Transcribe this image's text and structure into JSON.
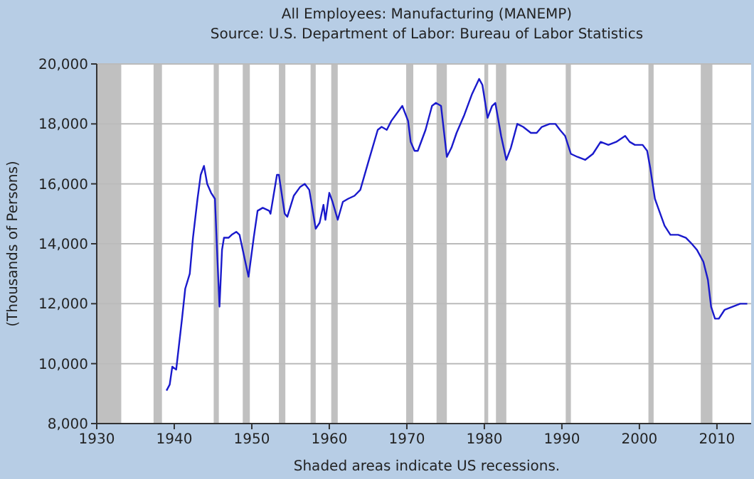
{
  "chart_data": {
    "type": "line",
    "title": "All Employees: Manufacturing (MANEMP)",
    "subtitle": "Source: U.S. Department of Labor: Bureau of Labor Statistics",
    "ylabel": "(Thousands of Persons)",
    "annotations": [
      "Shaded areas indicate US recessions."
    ],
    "x": [
      "1939-01",
      "1939-06",
      "1939-10",
      "1940-04",
      "1941-01",
      "1941-06",
      "1942-01",
      "1942-06",
      "1943-01",
      "1943-06",
      "1943-11",
      "1944-04",
      "1944-10",
      "1945-04",
      "1945-08",
      "1945-11",
      "1946-03",
      "1946-06",
      "1947-01",
      "1947-06",
      "1948-01",
      "1948-06",
      "1949-03",
      "1949-08",
      "1950-04",
      "1950-10",
      "1951-06",
      "1952-04",
      "1952-06",
      "1953-04",
      "1953-07",
      "1954-04",
      "1954-08",
      "1955-06",
      "1956-04",
      "1956-11",
      "1957-06",
      "1958-04",
      "1958-10",
      "1959-04",
      "1959-07",
      "1960-01",
      "1960-06",
      "1961-02",
      "1961-10",
      "1962-06",
      "1963-04",
      "1964-01",
      "1965-01",
      "1966-04",
      "1966-10",
      "1967-06",
      "1968-01",
      "1969-06",
      "1970-03",
      "1970-07",
      "1971-01",
      "1971-06",
      "1972-06",
      "1973-04",
      "1973-10",
      "1974-06",
      "1975-03",
      "1975-10",
      "1976-06",
      "1977-06",
      "1978-06",
      "1979-05",
      "1979-10",
      "1980-06",
      "1981-01",
      "1981-06",
      "1982-03",
      "1982-11",
      "1983-06",
      "1984-04",
      "1985-01",
      "1986-01",
      "1986-10",
      "1987-06",
      "1988-06",
      "1989-03",
      "1989-10",
      "1990-06",
      "1991-03",
      "1992-01",
      "1993-01",
      "1994-01",
      "1995-01",
      "1996-01",
      "1997-01",
      "1998-03",
      "1998-10",
      "1999-06",
      "2000-06",
      "2001-01",
      "2001-06",
      "2002-01",
      "2002-06",
      "2003-04",
      "2004-01",
      "2005-01",
      "2006-01",
      "2006-10",
      "2007-06",
      "2008-04",
      "2008-11",
      "2009-04",
      "2009-10",
      "2010-04",
      "2011-01",
      "2012-01",
      "2013-01",
      "2013-12"
    ],
    "series": [
      {
        "color": "#1a1acc",
        "values": [
          9100,
          9300,
          9900,
          9800,
          11500,
          12500,
          13000,
          14200,
          15500,
          16300,
          16600,
          16000,
          15700,
          15500,
          13400,
          11900,
          13800,
          14200,
          14200,
          14300,
          14400,
          14300,
          13400,
          12900,
          14200,
          15100,
          15200,
          15100,
          15000,
          16300,
          16300,
          15000,
          14900,
          15600,
          15900,
          16000,
          15800,
          14500,
          14700,
          15300,
          14800,
          15700,
          15400,
          14800,
          15400,
          15500,
          15600,
          15800,
          16700,
          17800,
          17900,
          17800,
          18100,
          18600,
          18100,
          17400,
          17100,
          17100,
          17800,
          18600,
          18700,
          18600,
          16900,
          17200,
          17700,
          18300,
          19000,
          19500,
          19300,
          18200,
          18600,
          18700,
          17600,
          16800,
          17200,
          18000,
          17900,
          17700,
          17700,
          17900,
          18000,
          18000,
          17800,
          17600,
          17000,
          16900,
          16800,
          17000,
          17400,
          17300,
          17400,
          17600,
          17400,
          17300,
          17300,
          17100,
          16500,
          15500,
          15200,
          14600,
          14300,
          14300,
          14200,
          14000,
          13800,
          13400,
          12800,
          11900,
          11500,
          11500,
          11800,
          11900,
          12000,
          12000
        ]
      }
    ],
    "xlim": [
      "1930-01",
      "2014-06"
    ],
    "xticks": [
      "1930",
      "1940",
      "1950",
      "1960",
      "1970",
      "1980",
      "1990",
      "2000",
      "2010"
    ],
    "ylim": [
      8000,
      20000
    ],
    "yticks": [
      {
        "value": 8000,
        "label": "8,000"
      },
      {
        "value": 10000,
        "label": "10,000"
      },
      {
        "value": 12000,
        "label": "12,000"
      },
      {
        "value": 14000,
        "label": "14,000"
      },
      {
        "value": 16000,
        "label": "16,000"
      },
      {
        "value": 18000,
        "label": "18,000"
      },
      {
        "value": 20000,
        "label": "20,000"
      }
    ],
    "grid": "y",
    "bands": [
      {
        "axis": "x",
        "from": "1930-01",
        "to": "1933-03",
        "color": "#c0c0c0"
      },
      {
        "axis": "x",
        "from": "1937-05",
        "to": "1938-06",
        "color": "#c0c0c0"
      },
      {
        "axis": "x",
        "from": "1945-02",
        "to": "1945-10",
        "color": "#c0c0c0"
      },
      {
        "axis": "x",
        "from": "1948-11",
        "to": "1949-10",
        "color": "#c0c0c0"
      },
      {
        "axis": "x",
        "from": "1953-07",
        "to": "1954-05",
        "color": "#c0c0c0"
      },
      {
        "axis": "x",
        "from": "1957-08",
        "to": "1958-04",
        "color": "#c0c0c0"
      },
      {
        "axis": "x",
        "from": "1960-04",
        "to": "1961-02",
        "color": "#c0c0c0"
      },
      {
        "axis": "x",
        "from": "1969-12",
        "to": "1970-11",
        "color": "#c0c0c0"
      },
      {
        "axis": "x",
        "from": "1973-11",
        "to": "1975-03",
        "color": "#c0c0c0"
      },
      {
        "axis": "x",
        "from": "1980-01",
        "to": "1980-07",
        "color": "#c0c0c0"
      },
      {
        "axis": "x",
        "from": "1981-07",
        "to": "1982-11",
        "color": "#c0c0c0"
      },
      {
        "axis": "x",
        "from": "1990-07",
        "to": "1991-03",
        "color": "#c0c0c0"
      },
      {
        "axis": "x",
        "from": "2001-03",
        "to": "2001-11",
        "color": "#c0c0c0"
      },
      {
        "axis": "x",
        "from": "2007-12",
        "to": "2009-06",
        "color": "#c0c0c0"
      }
    ]
  }
}
